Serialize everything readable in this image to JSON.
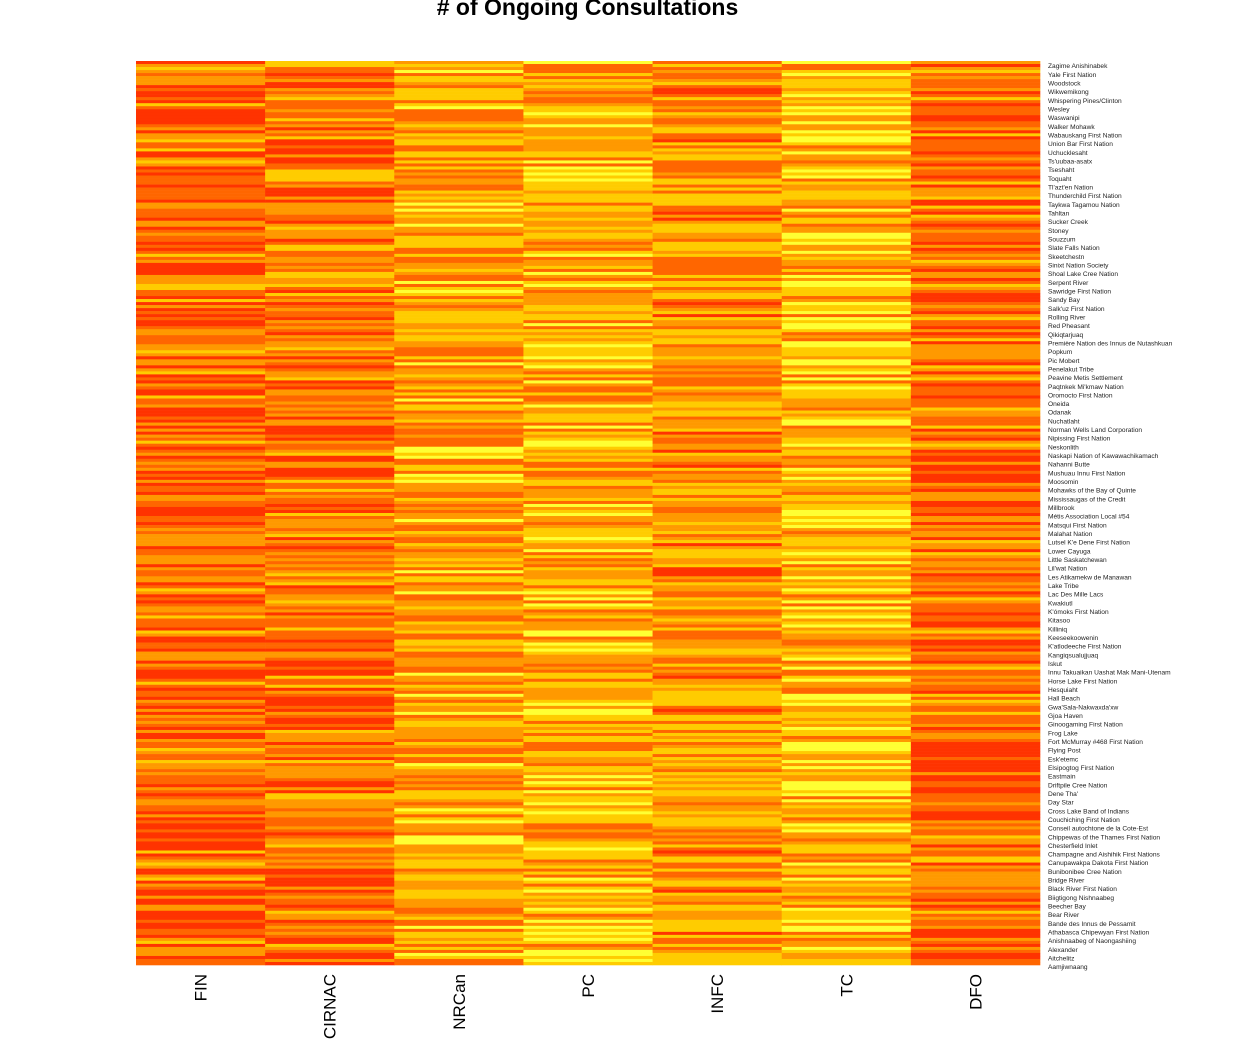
{
  "chart_data": {
    "type": "heatmap",
    "title": "# of Ongoing Consultations",
    "columns": [
      "FIN",
      "CIRNAC",
      "NRCan",
      "PC",
      "INFC",
      "TC",
      "DFO"
    ],
    "rows": [
      "Zagime Anishinabek",
      "Yale First Nation",
      "Woodstock",
      "Wikwemikong",
      "Whispering Pines/Clinton",
      "Wesley",
      "Waswanipi",
      "Walker Mohawk",
      "Wabauskang First Nation",
      "Union Bar First Nation",
      "Uchucklesaht",
      "Ts'uubaa-asatx",
      "Tseshaht",
      "Toquaht",
      "Tl'azt'en Nation",
      "Thunderchild First Nation",
      "Taykwa Tagamou Nation",
      "Tahltan",
      "Sucker Creek",
      "Stoney",
      "Souzzum",
      "Slate Falls Nation",
      "Skeetchestn",
      "Sinixt Nation Society",
      "Shoal Lake Cree Nation",
      "Serpent River",
      "Sawridge First Nation",
      "Sandy Bay",
      "Salk'uz First Nation",
      "Rolling River",
      "Red Pheasant",
      "Qikiqtarjuaq",
      "Première Nation des Innus de Nutashkuan",
      "Popkum",
      "Pic Mobert",
      "Penelakut Tribe",
      "Peavine Metis Settlement",
      "Paqtnkek Mi'kmaw Nation",
      "Oromocto First Nation",
      "Oneida",
      "Odanak",
      "Nuchatlaht",
      "Norman Wells Land Corporation",
      "Nipissing First Nation",
      "Neskonlith",
      "Naskapi Nation of Kawawachikamach",
      "Nahanni Butte",
      "Mushuau Innu First Nation",
      "Moosomin",
      "Mohawks of the Bay of Quinte",
      "Mississaugas of the Credit",
      "Millbrook",
      "Métis Association Local #54",
      "Matsqui First Nation",
      "Malahat Nation",
      "Lutsel K'e Dene First Nation",
      "Lower Cayuga",
      "Little Saskatchewan",
      "Lil'wat Nation",
      "Les Atikamekw de Manawan",
      "Lake Tribe",
      "Lac Des Mille Lacs",
      "Kwakiutl",
      "K'ómoks First Nation",
      "Kitasoo",
      "Killiniq",
      "Keeseekoowenin",
      "K'atlodeeche First Nation",
      "Kangiqsualujjuaq",
      "Iskut",
      "Innu Takuaikan Uashat Mak Mani-Utenam",
      "Horse Lake First Nation",
      "Hesquiaht",
      "Hall Beach",
      "Gwa'Sala-Nakwaxda'xw",
      "Gjoa Haven",
      "Ginoogaming First Nation",
      "Frog Lake",
      "Fort McMurray #468 First Nation",
      "Flying Post",
      "Esk'etemc",
      "Elsipogtog First Nation",
      "Eastmain",
      "Driftpile Cree Nation",
      "Dene Tha'",
      "Day Star",
      "Cross Lake Band of Indians",
      "Couchiching First Nation",
      "Conseil autochtone de la Cote-Est",
      "Chippewas of the Thames First Nation",
      "Chesterfield Inlet",
      "Champagne and Aishihik First Nations",
      "Canupawakpa Dakota First Nation",
      "Bunibonibee Cree Nation",
      "Bridge River",
      "Black River First Nation",
      "Biigtigong Nishnaabeg",
      "Beecher Bay",
      "Bear River",
      "Bande des Innus de Pessamit",
      "Athabasca Chipewyan First Nation",
      "Anishnaabeg of Naongashiing",
      "Alexander",
      "Aitchelitz",
      "Aamjiwnaang"
    ],
    "grid": false,
    "legend": "none",
    "color_scale": [
      "#FF3300",
      "#FF6600",
      "#FF9900",
      "#FFCC00",
      "#FFFF33",
      "#FFFF99"
    ]
  }
}
